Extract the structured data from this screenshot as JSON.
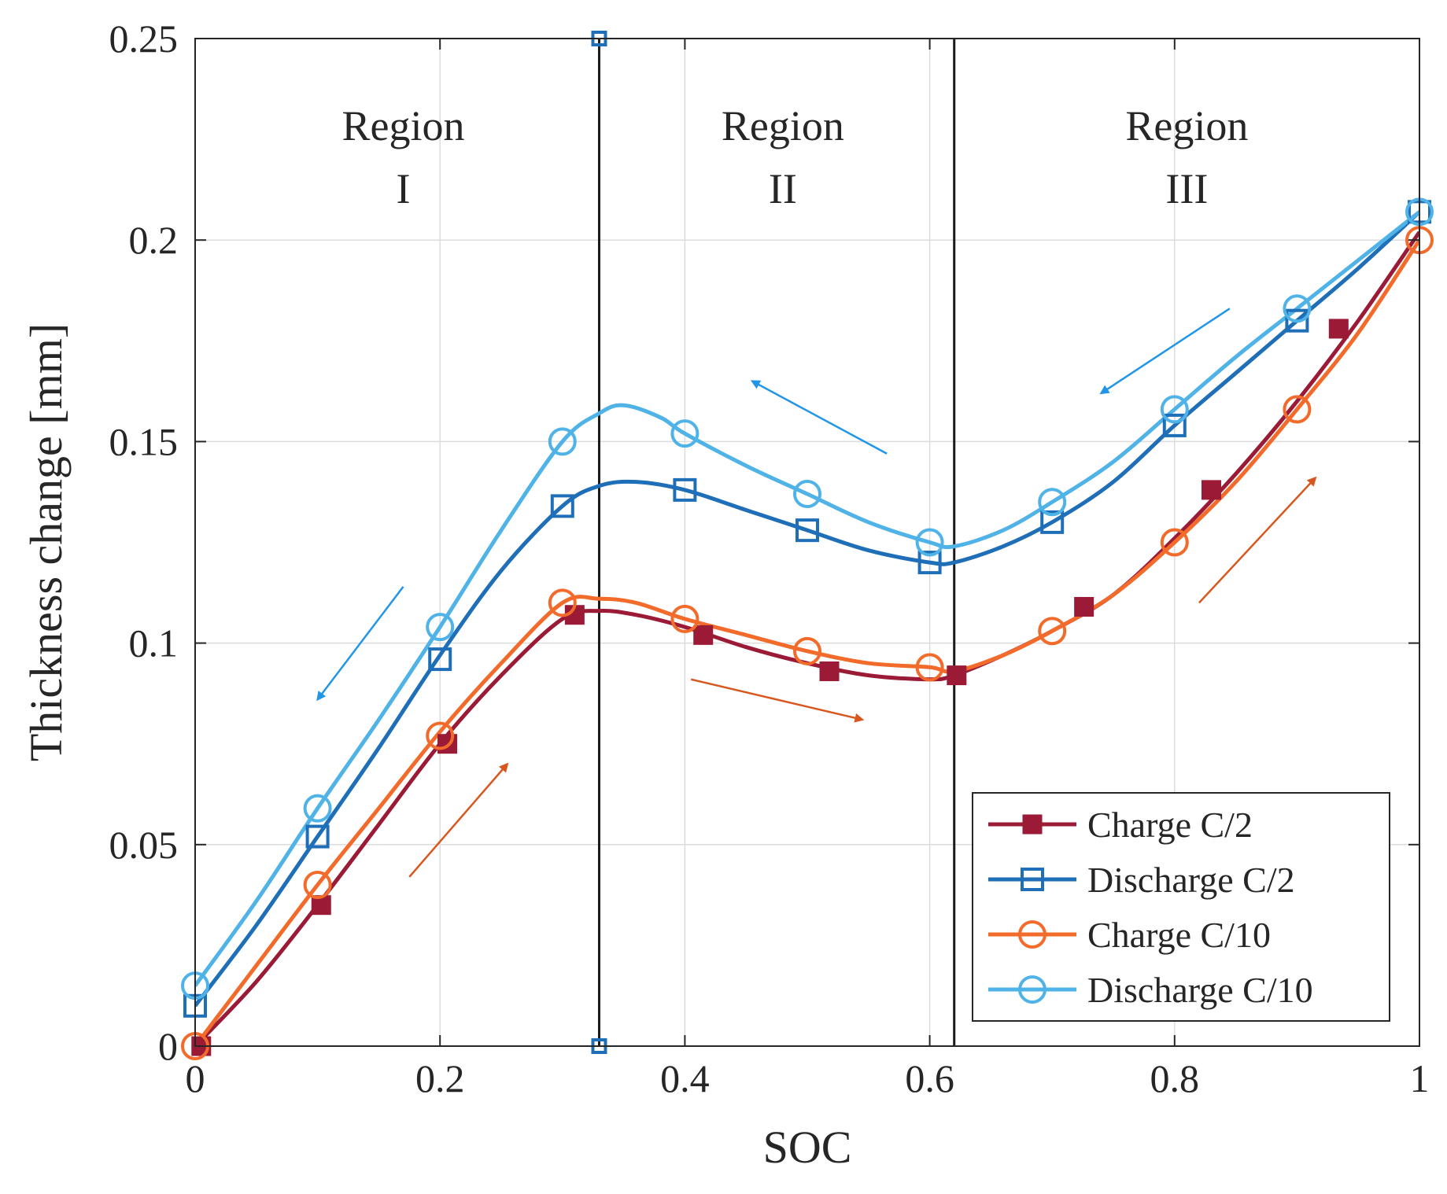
{
  "chart_data": {
    "type": "line",
    "title": "",
    "xlabel": "SOC",
    "ylabel": "Thickness change [mm]",
    "xlim": [
      0,
      1
    ],
    "ylim": [
      0,
      0.25
    ],
    "grid": true,
    "x_ticks": [
      0,
      0.2,
      0.4,
      0.6,
      0.8,
      1
    ],
    "x_tick_labels": [
      "0",
      "0.2",
      "0.4",
      "0.6",
      "0.8",
      "1"
    ],
    "y_ticks": [
      0,
      0.05,
      0.1,
      0.15,
      0.2,
      0.25
    ],
    "y_tick_labels": [
      "0",
      "0.05",
      "0.1",
      "0.15",
      "0.2",
      "0.25"
    ],
    "vertical_lines": [
      0.33,
      0.62
    ],
    "boundary_markers": [
      {
        "x": 0.33,
        "y": 0.25
      },
      {
        "x": 0.33,
        "y": 0.0
      }
    ],
    "regions": [
      {
        "line1": "Region",
        "line2": "I",
        "x": 0.17
      },
      {
        "line1": "Region",
        "line2": "II",
        "x": 0.48
      },
      {
        "line1": "Region",
        "line2": "III",
        "x": 0.81
      }
    ],
    "legend_position": "bottom-right",
    "series": [
      {
        "name": "Charge C/2",
        "color": "#9b1a36",
        "marker": "square-filled",
        "x": [
          0,
          0.05,
          0.1,
          0.15,
          0.2,
          0.25,
          0.3,
          0.33,
          0.36,
          0.4,
          0.45,
          0.5,
          0.55,
          0.6,
          0.62,
          0.66,
          0.7,
          0.75,
          0.8,
          0.85,
          0.9,
          0.95,
          1.0
        ],
        "y": [
          0.0,
          0.016,
          0.035,
          0.055,
          0.075,
          0.092,
          0.106,
          0.108,
          0.107,
          0.104,
          0.099,
          0.095,
          0.092,
          0.091,
          0.092,
          0.097,
          0.103,
          0.112,
          0.126,
          0.142,
          0.16,
          0.18,
          0.202
        ],
        "marker_x": [
          0.005,
          0.103,
          0.206,
          0.31,
          0.415,
          0.518,
          0.622,
          0.726,
          0.83,
          0.934
        ],
        "marker_y": [
          0.0,
          0.035,
          0.075,
          0.107,
          0.102,
          0.093,
          0.092,
          0.109,
          0.138,
          0.178
        ]
      },
      {
        "name": "Discharge C/2",
        "color": "#1f6fb8",
        "marker": "square-open",
        "x": [
          0,
          0.05,
          0.1,
          0.15,
          0.2,
          0.25,
          0.3,
          0.33,
          0.36,
          0.4,
          0.45,
          0.5,
          0.55,
          0.6,
          0.62,
          0.66,
          0.7,
          0.75,
          0.8,
          0.85,
          0.9,
          0.95,
          1.0
        ],
        "y": [
          0.01,
          0.03,
          0.052,
          0.074,
          0.097,
          0.118,
          0.134,
          0.139,
          0.14,
          0.138,
          0.133,
          0.128,
          0.123,
          0.12,
          0.12,
          0.124,
          0.13,
          0.14,
          0.154,
          0.167,
          0.18,
          0.193,
          0.207
        ],
        "marker_x": [
          0,
          0.1,
          0.2,
          0.3,
          0.4,
          0.5,
          0.6,
          0.7,
          0.8,
          0.9,
          1.0
        ],
        "marker_y": [
          0.01,
          0.052,
          0.096,
          0.134,
          0.138,
          0.128,
          0.12,
          0.13,
          0.154,
          0.18,
          0.207
        ]
      },
      {
        "name": "Charge C/10",
        "color": "#f26b2a",
        "marker": "circle-open",
        "x": [
          0,
          0.05,
          0.1,
          0.15,
          0.2,
          0.25,
          0.3,
          0.33,
          0.36,
          0.4,
          0.45,
          0.5,
          0.55,
          0.6,
          0.62,
          0.66,
          0.7,
          0.75,
          0.8,
          0.85,
          0.9,
          0.95,
          1.0
        ],
        "y": [
          0.0,
          0.02,
          0.04,
          0.059,
          0.078,
          0.095,
          0.11,
          0.111,
          0.11,
          0.106,
          0.102,
          0.098,
          0.095,
          0.094,
          0.093,
          0.097,
          0.103,
          0.112,
          0.125,
          0.14,
          0.158,
          0.177,
          0.2
        ],
        "marker_x": [
          0,
          0.1,
          0.2,
          0.3,
          0.4,
          0.5,
          0.6,
          0.7,
          0.8,
          0.9,
          1.0
        ],
        "marker_y": [
          0.0,
          0.04,
          0.077,
          0.11,
          0.106,
          0.098,
          0.094,
          0.103,
          0.125,
          0.158,
          0.2
        ]
      },
      {
        "name": "Discharge C/10",
        "color": "#4fb3e8",
        "marker": "circle-open",
        "x": [
          0,
          0.05,
          0.1,
          0.15,
          0.2,
          0.25,
          0.3,
          0.33,
          0.35,
          0.38,
          0.4,
          0.45,
          0.5,
          0.55,
          0.6,
          0.62,
          0.66,
          0.7,
          0.75,
          0.8,
          0.85,
          0.9,
          0.95,
          1.0
        ],
        "y": [
          0.015,
          0.036,
          0.059,
          0.081,
          0.104,
          0.128,
          0.15,
          0.157,
          0.159,
          0.156,
          0.152,
          0.144,
          0.137,
          0.13,
          0.125,
          0.124,
          0.128,
          0.135,
          0.145,
          0.158,
          0.171,
          0.183,
          0.195,
          0.207
        ],
        "marker_x": [
          0,
          0.1,
          0.2,
          0.3,
          0.4,
          0.5,
          0.6,
          0.7,
          0.8,
          0.9,
          1.0
        ],
        "marker_y": [
          0.015,
          0.059,
          0.104,
          0.15,
          0.152,
          0.137,
          0.125,
          0.135,
          0.158,
          0.183,
          0.207
        ]
      }
    ],
    "direction_arrows": [
      {
        "color": "#2196e8",
        "from": [
          0.17,
          0.114
        ],
        "to": [
          0.1,
          0.086
        ]
      },
      {
        "color": "#2196e8",
        "from": [
          0.565,
          0.147
        ],
        "to": [
          0.455,
          0.165
        ]
      },
      {
        "color": "#2196e8",
        "from": [
          0.845,
          0.183
        ],
        "to": [
          0.74,
          0.162
        ]
      },
      {
        "color": "#d8571f",
        "from": [
          0.175,
          0.042
        ],
        "to": [
          0.255,
          0.07
        ]
      },
      {
        "color": "#d8571f",
        "from": [
          0.405,
          0.091
        ],
        "to": [
          0.545,
          0.081
        ]
      },
      {
        "color": "#d8571f",
        "from": [
          0.82,
          0.11
        ],
        "to": [
          0.915,
          0.141
        ]
      }
    ]
  }
}
